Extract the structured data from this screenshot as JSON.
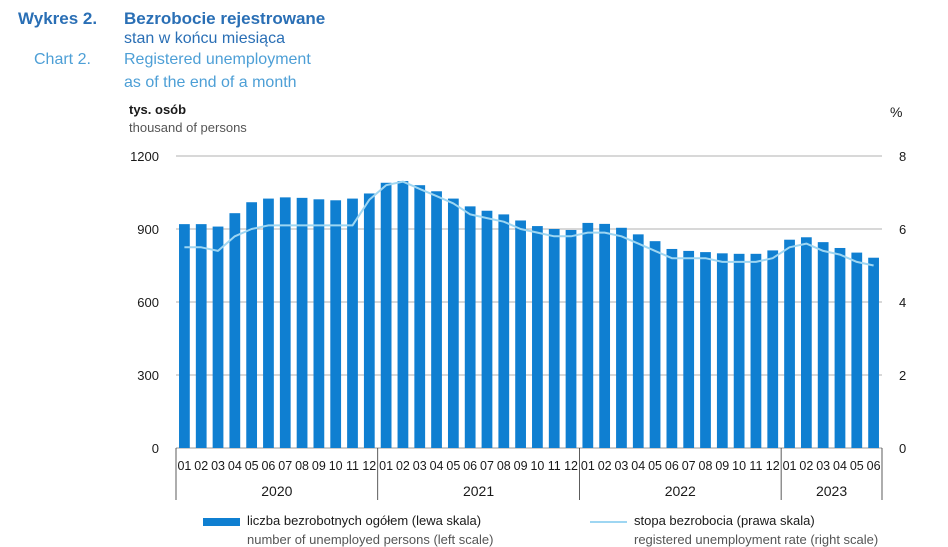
{
  "header": {
    "chart_label_pl": "Wykres 2.",
    "chart_label_en": "Chart 2.",
    "title_pl": "Bezrobocie rejestrowane",
    "subtitle_pl": "stan w końcu miesiąca",
    "title_en": "Registered unemployment",
    "subtitle_en": "as of the end of a month"
  },
  "colors": {
    "title_dark": "#2a6fb5",
    "title_light": "#4d9fd6",
    "bar": "#0f7fd1",
    "line": "#9ed6f2",
    "grid": "#999999"
  },
  "chart_data": {
    "type": "bar",
    "y_left_label_pl": "tys. osób",
    "y_left_label_en": "thousand of persons",
    "y_right_label": "%",
    "ylim_left": [
      0,
      1200
    ],
    "ylim_right": [
      0,
      8
    ],
    "yticks_left": [
      0,
      300,
      600,
      900,
      1200
    ],
    "yticks_right": [
      0,
      2,
      4,
      6,
      8
    ],
    "grid": true,
    "legend_position": "bottom",
    "categories": [
      "01",
      "02",
      "03",
      "04",
      "05",
      "06",
      "07",
      "08",
      "09",
      "10",
      "11",
      "12",
      "01",
      "02",
      "03",
      "04",
      "05",
      "06",
      "07",
      "08",
      "09",
      "10",
      "11",
      "12",
      "01",
      "02",
      "03",
      "04",
      "05",
      "06",
      "07",
      "08",
      "09",
      "10",
      "11",
      "12",
      "01",
      "02",
      "03",
      "04",
      "05",
      "06"
    ],
    "years": [
      {
        "label": "2020",
        "months": 12
      },
      {
        "label": "2021",
        "months": 12
      },
      {
        "label": "2022",
        "months": 12
      },
      {
        "label": "2023",
        "months": 6
      }
    ],
    "series": [
      {
        "name": "liczba bezrobotnych ogółem (lewa skala)",
        "name_en": "number of unemployed persons (left scale)",
        "type": "bar",
        "axis": "left",
        "values": [
          920,
          920,
          910,
          965,
          1010,
          1025,
          1030,
          1028,
          1022,
          1018,
          1025,
          1046,
          1090,
          1097,
          1080,
          1055,
          1025,
          993,
          975,
          960,
          935,
          912,
          900,
          896,
          925,
          921,
          905,
          878,
          850,
          818,
          810,
          805,
          800,
          798,
          798,
          812,
          856,
          866,
          846,
          822,
          803,
          782
        ]
      },
      {
        "name": "stopa bezrobocia (prawa skala)",
        "name_en": "registered unemployment rate (right scale)",
        "type": "line",
        "axis": "right",
        "values": [
          5.5,
          5.5,
          5.4,
          5.8,
          6.0,
          6.1,
          6.1,
          6.1,
          6.1,
          6.1,
          6.1,
          6.8,
          7.2,
          7.3,
          7.1,
          6.9,
          6.7,
          6.4,
          6.3,
          6.2,
          6.0,
          5.9,
          5.8,
          5.8,
          5.9,
          5.9,
          5.8,
          5.6,
          5.4,
          5.2,
          5.2,
          5.2,
          5.1,
          5.1,
          5.1,
          5.2,
          5.5,
          5.6,
          5.4,
          5.3,
          5.1,
          5.0
        ]
      }
    ]
  }
}
